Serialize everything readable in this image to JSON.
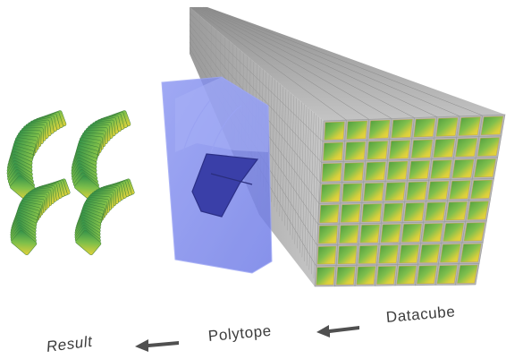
{
  "labels": {
    "result": "Result",
    "polytope": "Polytope",
    "datacube": "Datacube"
  },
  "colors": {
    "cube_face_green": "#5fae48",
    "cube_face_yellow": "#e8d23a",
    "cube_edge_grey": "#a8a8a8",
    "cube_side_grey": "#bcbcbc",
    "polytope_fill": "#7f8cf0",
    "polytope_inner": "#3a3fa8",
    "arrow": "#505050"
  },
  "icons": [
    "datacube-icon",
    "polytope-icon",
    "result-slices-icon",
    "arrow-left-icon"
  ]
}
